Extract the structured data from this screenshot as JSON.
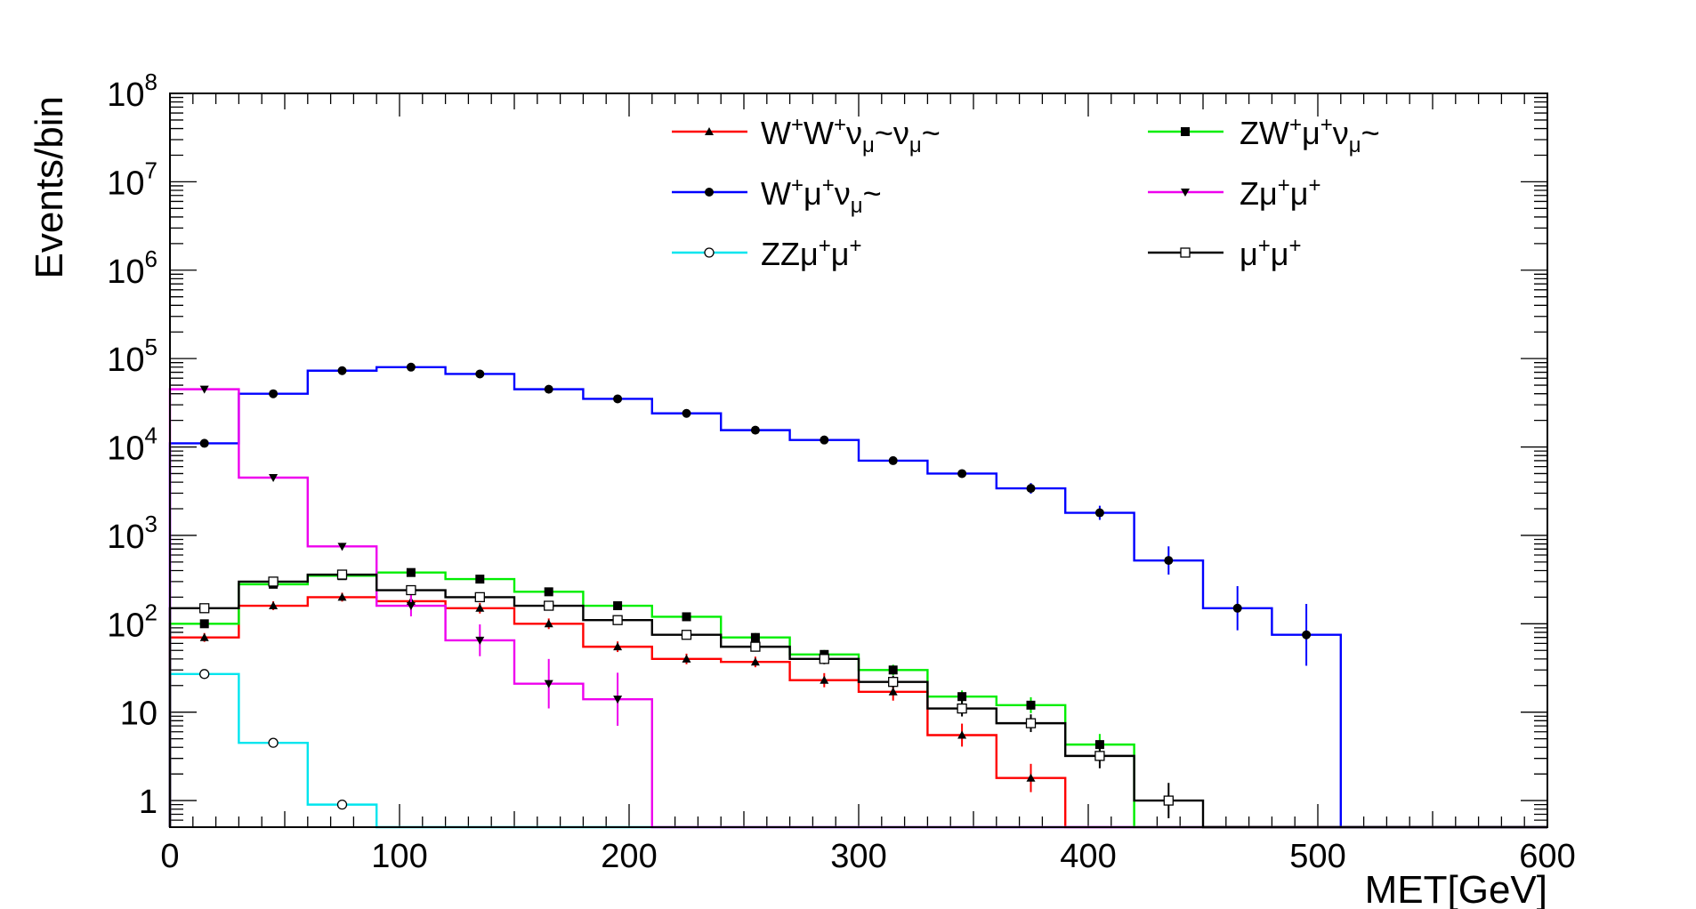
{
  "chart_data": {
    "type": "line",
    "title": "",
    "xlabel": "MET[GeV]",
    "ylabel": "Events/bin",
    "xlim": [
      0,
      600
    ],
    "ylim_log": [
      0.5,
      100000000
    ],
    "x_ticks": [
      0,
      100,
      200,
      300,
      400,
      500,
      600
    ],
    "x_tick_labels": [
      "0",
      "100",
      "200",
      "300",
      "400",
      "500",
      "600"
    ],
    "y_ticks": [
      {
        "value": 1,
        "label": "1",
        "exp": ""
      },
      {
        "value": 10,
        "label": "10",
        "exp": ""
      },
      {
        "value": 100,
        "label": "10",
        "exp": "2"
      },
      {
        "value": 1000,
        "label": "10",
        "exp": "3"
      },
      {
        "value": 10000,
        "label": "10",
        "exp": "4"
      },
      {
        "value": 100000,
        "label": "10",
        "exp": "5"
      },
      {
        "value": 1000000,
        "label": "10",
        "exp": "6"
      },
      {
        "value": 10000000,
        "label": "10",
        "exp": "7"
      },
      {
        "value": 100000000,
        "label": "10",
        "exp": "8"
      }
    ],
    "bin_edges": [
      0,
      30,
      60,
      90,
      120,
      150,
      180,
      210,
      240,
      270,
      300,
      330,
      360,
      390,
      420,
      450,
      480,
      510,
      540,
      570,
      600
    ],
    "legend_position": "top",
    "series": [
      {
        "name": "W+W+νμ~νμ~",
        "legend": {
          "base": "W",
          "parts": [
            [
              "sup",
              "+"
            ],
            [
              "n",
              "W"
            ],
            [
              "sup",
              "+"
            ],
            [
              "n",
              "ν"
            ],
            [
              "sub",
              "μ"
            ],
            [
              "n",
              "~ν"
            ],
            [
              "sub",
              "μ"
            ],
            [
              "n",
              "~"
            ]
          ]
        },
        "color": "#ff0000",
        "marker": "triangle-up",
        "values": [
          70,
          160,
          200,
          180,
          150,
          100,
          55,
          40,
          37,
          23,
          17,
          5.5,
          1.8,
          0,
          0,
          0,
          0,
          0,
          0,
          0
        ],
        "errors": [
          0.05,
          0.05,
          0.05,
          0.08,
          0.06,
          0.06,
          0.06,
          0.06,
          0.06,
          0.08,
          0.1,
          0.13,
          0.16,
          0,
          0,
          0,
          0,
          0,
          0,
          0
        ]
      },
      {
        "name": "W+μ+νμ~",
        "legend": {
          "base": "W",
          "parts": [
            [
              "sup",
              "+"
            ],
            [
              "n",
              "μ"
            ],
            [
              "sup",
              "+"
            ],
            [
              "n",
              "ν"
            ],
            [
              "sub",
              "μ"
            ],
            [
              "n",
              "~"
            ]
          ]
        },
        "color": "#0000ff",
        "marker": "circle",
        "values": [
          11000,
          40000,
          73000,
          80000,
          67000,
          45000,
          35000,
          24000,
          15500,
          12000,
          7000,
          5000,
          3400,
          1800,
          520,
          150,
          75,
          0,
          0,
          0
        ],
        "errors": [
          0.02,
          0.02,
          0.02,
          0.02,
          0.02,
          0.02,
          0.02,
          0.02,
          0.03,
          0.03,
          0.04,
          0.04,
          0.06,
          0.08,
          0.16,
          0.25,
          0.35,
          0,
          0,
          0
        ]
      },
      {
        "name": "ZZμ+μ+",
        "legend": {
          "base": "ZZμ",
          "parts": [
            [
              "sup",
              "+"
            ],
            [
              "n",
              "μ"
            ],
            [
              "sup",
              "+"
            ]
          ]
        },
        "color": "#00e5ee",
        "marker": "circle-open",
        "values": [
          27,
          4.5,
          0.9,
          0,
          0,
          0,
          0,
          0,
          0,
          0,
          0,
          0,
          0,
          0,
          0,
          0,
          0,
          0,
          0,
          0
        ],
        "errors": [
          0.02,
          0.02,
          0.03,
          0,
          0,
          0,
          0,
          0,
          0,
          0,
          0,
          0,
          0,
          0,
          0,
          0,
          0,
          0,
          0,
          0
        ]
      },
      {
        "name": "ZW+μ+νμ~",
        "legend": {
          "base": "ZW",
          "parts": [
            [
              "sup",
              "+"
            ],
            [
              "n",
              "μ"
            ],
            [
              "sup",
              "+"
            ],
            [
              "n",
              "ν"
            ],
            [
              "sub",
              "μ"
            ],
            [
              "n",
              "~"
            ]
          ]
        },
        "color": "#00ee00",
        "marker": "square",
        "values": [
          100,
          280,
          350,
          380,
          320,
          230,
          160,
          120,
          70,
          45,
          30,
          15,
          12,
          4.3,
          0,
          0,
          0,
          0,
          0,
          0
        ],
        "errors": [
          0.03,
          0.03,
          0.03,
          0.03,
          0.03,
          0.04,
          0.04,
          0.04,
          0.05,
          0.05,
          0.06,
          0.07,
          0.09,
          0.12,
          0,
          0,
          0,
          0,
          0,
          0
        ]
      },
      {
        "name": "Zμ+μ+",
        "legend": {
          "base": "Zμ",
          "parts": [
            [
              "sup",
              "+"
            ],
            [
              "n",
              "μ"
            ],
            [
              "sup",
              "+"
            ]
          ]
        },
        "color": "#ee00ee",
        "marker": "triangle-down",
        "values": [
          45000,
          4500,
          750,
          160,
          65,
          21,
          14,
          0,
          0,
          0,
          0,
          0,
          0,
          0,
          0,
          0,
          0,
          0,
          0,
          0
        ],
        "errors": [
          0.02,
          0.03,
          0.04,
          0.12,
          0.18,
          0.28,
          0.3,
          0,
          0,
          0,
          0,
          0,
          0,
          0,
          0,
          0,
          0,
          0,
          0,
          0
        ]
      },
      {
        "name": "μ+μ+",
        "legend": {
          "base": "μ",
          "parts": [
            [
              "sup",
              "+"
            ],
            [
              "n",
              "μ"
            ],
            [
              "sup",
              "+"
            ]
          ]
        },
        "color": "#000000",
        "marker": "square-open",
        "values": [
          150,
          300,
          360,
          240,
          200,
          160,
          110,
          75,
          55,
          40,
          22,
          11,
          7.5,
          3.2,
          1.0,
          0,
          0,
          0,
          0,
          0
        ],
        "errors": [
          0.03,
          0.03,
          0.03,
          0.03,
          0.03,
          0.04,
          0.04,
          0.04,
          0.05,
          0.06,
          0.07,
          0.09,
          0.1,
          0.14,
          0.2,
          0,
          0,
          0,
          0,
          0
        ]
      }
    ]
  }
}
